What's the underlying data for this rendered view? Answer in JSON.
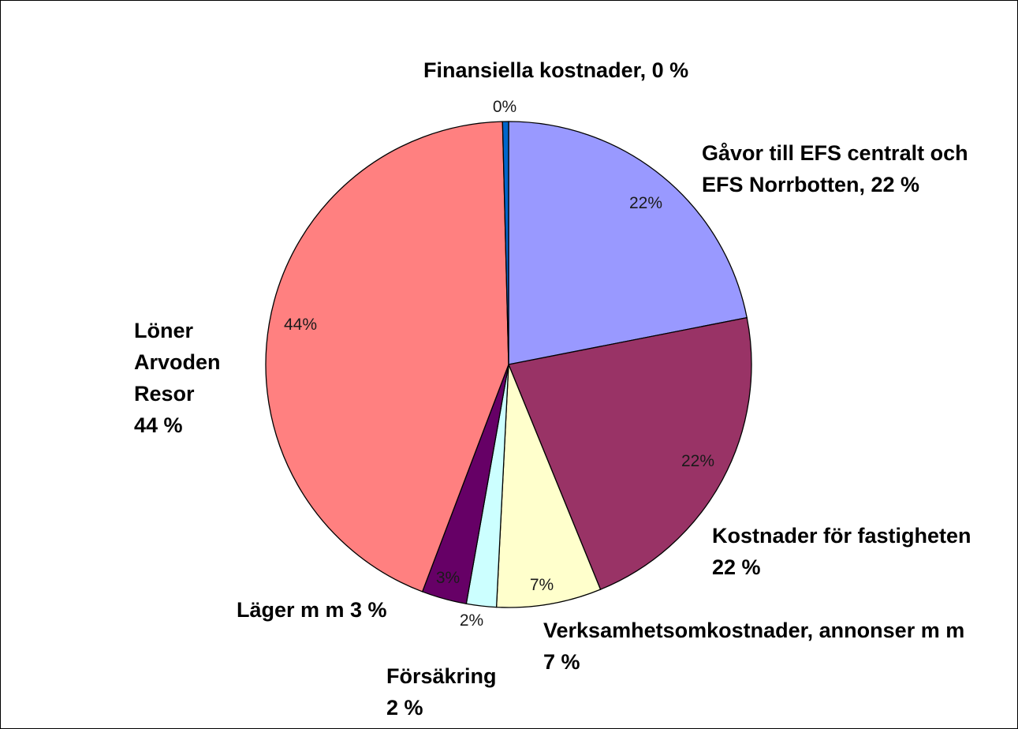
{
  "chart_data": {
    "type": "pie",
    "start_angle_deg": 0,
    "direction": "clockwise",
    "slices": [
      {
        "category": "Gåvor till EFS centralt och EFS Norrbotten",
        "value": 22,
        "pct_label": "22%",
        "label_lines": [
          "Gåvor till EFS centralt och",
          "EFS Norrbotten, 22 %"
        ],
        "color": "#9999ff"
      },
      {
        "category": "Kostnader för fastigheten",
        "value": 22,
        "pct_label": "22%",
        "label_lines": [
          "Kostnader för fastigheten",
          "22 %"
        ],
        "color": "#993366"
      },
      {
        "category": "Verksamhetsomkostnader, annonser m m",
        "value": 7,
        "pct_label": "7%",
        "label_lines": [
          "Verksamhetsomkostnader, annonser m m",
          "7 %"
        ],
        "color": "#ffffcc"
      },
      {
        "category": "Försäkring",
        "value": 2,
        "pct_label": "2%",
        "label_lines": [
          "Försäkring",
          "2 %"
        ],
        "color": "#ccffff"
      },
      {
        "category": "Läger m m",
        "value": 3,
        "pct_label": "3%",
        "label_lines": [
          "Läger m m 3 %"
        ],
        "color": "#660066"
      },
      {
        "category": "Löner Arvoden Resor",
        "value": 44,
        "pct_label": "44%",
        "label_lines": [
          "Löner",
          "Arvoden",
          "Resor",
          "44 %"
        ],
        "color": "#ff8080"
      },
      {
        "category": "Finansiella kostnader",
        "value": 0.4,
        "pct_label": "0%",
        "label_lines": [
          "Finansiella kostnader, 0 %"
        ],
        "color": "#0066cc"
      }
    ]
  }
}
